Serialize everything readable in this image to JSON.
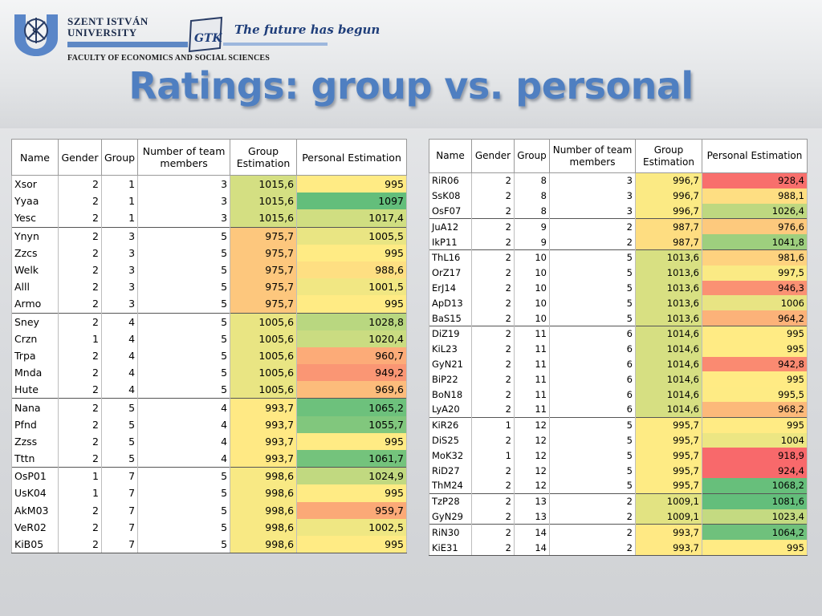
{
  "header": {
    "university_line1": "SZENT ISTVÁN",
    "university_line2": "UNIVERSITY",
    "gtk_label": "GTK",
    "tagline": "The future has begun",
    "faculty": "FACULTY OF ECONOMICS AND SOCIAL SCIENCES"
  },
  "title": "Ratings: group vs. personal",
  "colors": {
    "red": "#f8696b",
    "orange": "#fbaa77",
    "yellow": "#ffeb84",
    "lightgreen": "#cbdc81",
    "green": "#63be7b",
    "title_blue": "#4f7fc1"
  },
  "columns": [
    "Name",
    "Gender",
    "Group",
    "Number of team members",
    "Group Estimation",
    "Personal Estimation"
  ],
  "left_table": [
    [
      "Xsor",
      2,
      1,
      3,
      "1015,6",
      "995"
    ],
    [
      "Yyaa",
      2,
      1,
      3,
      "1015,6",
      "1097"
    ],
    [
      "Yesc",
      2,
      1,
      3,
      "1015,6",
      "1017,4"
    ],
    [
      "Ynyn",
      2,
      3,
      5,
      "975,7",
      "1005,5"
    ],
    [
      "Zzcs",
      2,
      3,
      5,
      "975,7",
      "995"
    ],
    [
      "Welk",
      2,
      3,
      5,
      "975,7",
      "988,6"
    ],
    [
      "Alll",
      2,
      3,
      5,
      "975,7",
      "1001,5"
    ],
    [
      "Armo",
      2,
      3,
      5,
      "975,7",
      "995"
    ],
    [
      "Sney",
      2,
      4,
      5,
      "1005,6",
      "1028,8"
    ],
    [
      "Crzn",
      1,
      4,
      5,
      "1005,6",
      "1020,4"
    ],
    [
      "Trpa",
      2,
      4,
      5,
      "1005,6",
      "960,7"
    ],
    [
      "Mnda",
      2,
      4,
      5,
      "1005,6",
      "949,2"
    ],
    [
      "Hute",
      2,
      4,
      5,
      "1005,6",
      "969,6"
    ],
    [
      "Nana",
      2,
      5,
      4,
      "993,7",
      "1065,2"
    ],
    [
      "Pfnd",
      2,
      5,
      4,
      "993,7",
      "1055,7"
    ],
    [
      "Zzss",
      2,
      5,
      4,
      "993,7",
      "995"
    ],
    [
      "Tttn",
      2,
      5,
      4,
      "993,7",
      "1061,7"
    ],
    [
      "OsP01",
      1,
      7,
      5,
      "998,6",
      "1024,9"
    ],
    [
      "UsK04",
      1,
      7,
      5,
      "998,6",
      "995"
    ],
    [
      "AkM03",
      2,
      7,
      5,
      "998,6",
      "959,7"
    ],
    [
      "VeR02",
      2,
      7,
      5,
      "998,6",
      "1002,5"
    ],
    [
      "KiB05",
      2,
      7,
      5,
      "998,6",
      "995"
    ]
  ],
  "right_table": [
    [
      "RiR06",
      2,
      8,
      3,
      "996,7",
      "928,4"
    ],
    [
      "SsK08",
      2,
      8,
      3,
      "996,7",
      "988,1"
    ],
    [
      "OsF07",
      2,
      8,
      3,
      "996,7",
      "1026,4"
    ],
    [
      "JuA12",
      2,
      9,
      2,
      "987,7",
      "976,6"
    ],
    [
      "IkP11",
      2,
      9,
      2,
      "987,7",
      "1041,8"
    ],
    [
      "ThL16",
      2,
      10,
      5,
      "1013,6",
      "981,6"
    ],
    [
      "OrZ17",
      2,
      10,
      5,
      "1013,6",
      "997,5"
    ],
    [
      "ErJ14",
      2,
      10,
      5,
      "1013,6",
      "946,3"
    ],
    [
      "ApD13",
      2,
      10,
      5,
      "1013,6",
      "1006"
    ],
    [
      "BaS15",
      2,
      10,
      5,
      "1013,6",
      "964,2"
    ],
    [
      "DiZ19",
      2,
      11,
      6,
      "1014,6",
      "995"
    ],
    [
      "KiL23",
      2,
      11,
      6,
      "1014,6",
      "995"
    ],
    [
      "GyN21",
      2,
      11,
      6,
      "1014,6",
      "942,8"
    ],
    [
      "BiP22",
      2,
      11,
      6,
      "1014,6",
      "995"
    ],
    [
      "BoN18",
      2,
      11,
      6,
      "1014,6",
      "995,5"
    ],
    [
      "LyA20",
      2,
      11,
      6,
      "1014,6",
      "968,2"
    ],
    [
      "KiR26",
      1,
      12,
      5,
      "995,7",
      "995"
    ],
    [
      "DiS25",
      2,
      12,
      5,
      "995,7",
      "1004"
    ],
    [
      "MoK32",
      1,
      12,
      5,
      "995,7",
      "918,9"
    ],
    [
      "RiD27",
      2,
      12,
      5,
      "995,7",
      "924,4"
    ],
    [
      "ThM24",
      2,
      12,
      5,
      "995,7",
      "1068,2"
    ],
    [
      "TzP28",
      2,
      13,
      2,
      "1009,1",
      "1081,6"
    ],
    [
      "GyN29",
      2,
      13,
      2,
      "1009,1",
      "1023,4"
    ],
    [
      "RiN30",
      2,
      14,
      2,
      "993,7",
      "1064,2"
    ],
    [
      "KiE31",
      2,
      14,
      2,
      "993,7",
      "995"
    ]
  ]
}
